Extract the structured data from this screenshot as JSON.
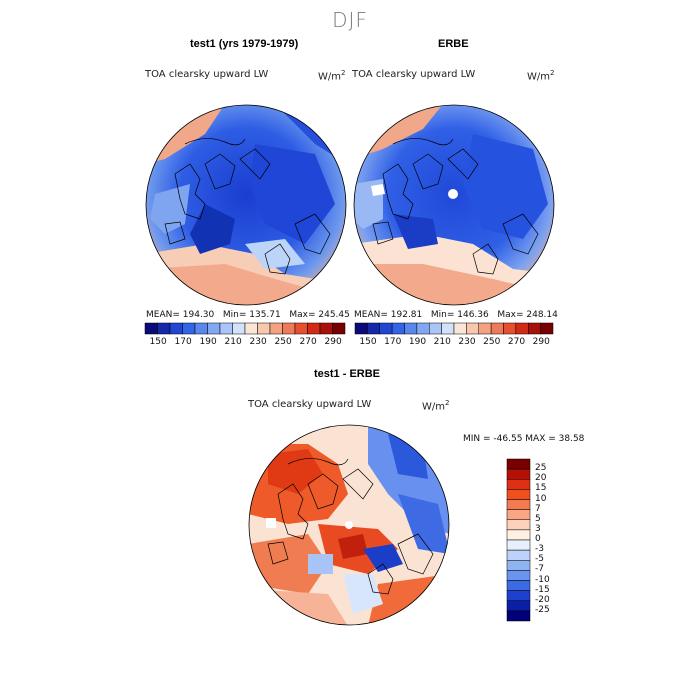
{
  "season": "DJF",
  "panels": {
    "test1": {
      "title": "test1 (yrs 1979-1979)",
      "variable": "TOA clearsky upward LW",
      "units": "W/m",
      "units_exp": "2",
      "mean_label": "MEAN=",
      "mean": "194.30",
      "min_label": "Min=",
      "min": "135.71",
      "max_label": "Max=",
      "max": "245.45"
    },
    "erbe": {
      "title": "ERBE",
      "variable": "TOA clearsky upward LW",
      "units": "W/m",
      "units_exp": "2",
      "mean_label": "MEAN=",
      "mean": "192.81",
      "min_label": "Min=",
      "min": "146.36",
      "max_label": "Max=",
      "max": "248.14"
    },
    "diff": {
      "title": "test1 - ERBE",
      "variable": "TOA clearsky upward LW",
      "units": "W/m",
      "units_exp": "2",
      "minmax_text": "MIN = -46.55 MAX =  38.58"
    }
  },
  "abs_colorbar": {
    "colors": [
      "#0a0a78",
      "#1428a8",
      "#2046d2",
      "#3264e6",
      "#5a87ee",
      "#82a8f4",
      "#aac6f8",
      "#d2e2fa",
      "#fae6d6",
      "#f8c8ae",
      "#f4a282",
      "#ee7a5a",
      "#e6502e",
      "#d22a14",
      "#a8100a",
      "#780000"
    ],
    "labels": [
      "150",
      "170",
      "190",
      "210",
      "230",
      "250",
      "270",
      "290"
    ]
  },
  "diff_colorbar": {
    "colors": [
      "#780000",
      "#b41008",
      "#e03014",
      "#f0501e",
      "#f47a50",
      "#f8a684",
      "#fcd2ba",
      "#fff0e4",
      "#e8f0fc",
      "#bcd2f8",
      "#90b4f2",
      "#6a94ee",
      "#3c6ae4",
      "#1e40d0",
      "#0a1ea6",
      "#000078"
    ],
    "labels": [
      "25",
      "20",
      "15",
      "10",
      "7",
      "5",
      "3",
      "0",
      "-3",
      "-5",
      "-7",
      "-10",
      "-15",
      "-20",
      "-25"
    ]
  }
}
